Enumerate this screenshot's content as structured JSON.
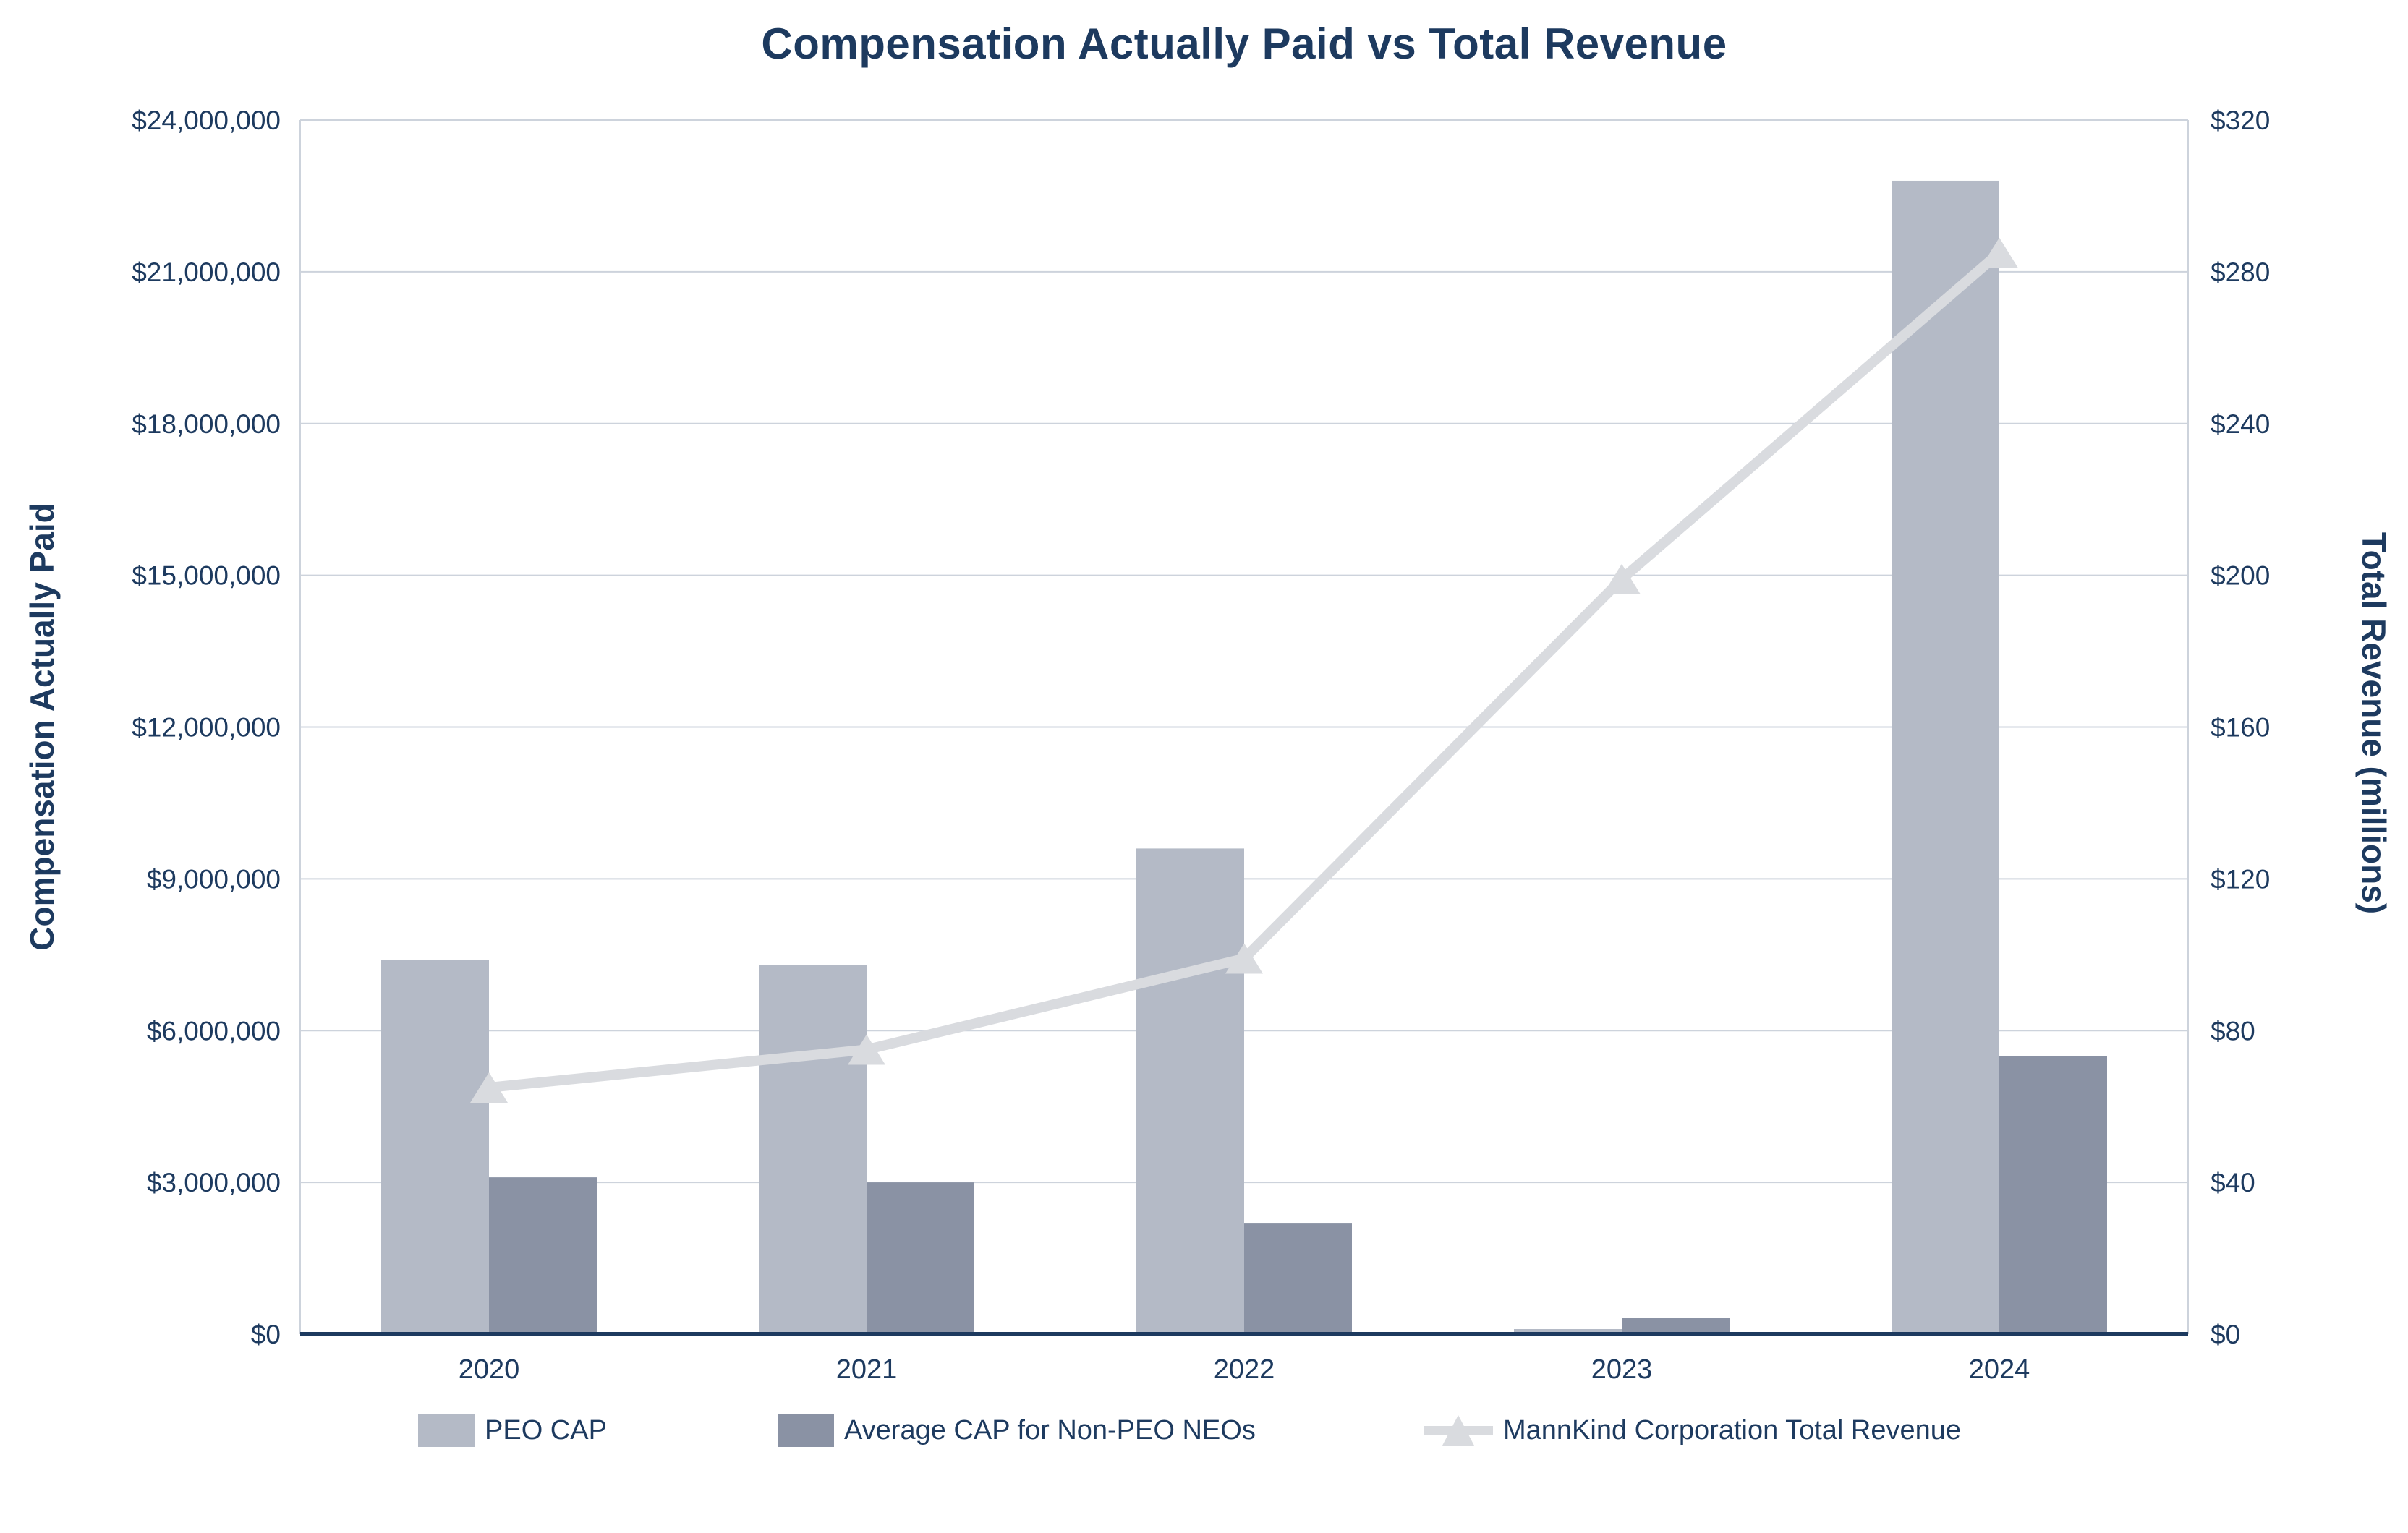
{
  "title": "Compensation Actually Paid vs Total Revenue",
  "colors": {
    "title_text": "#1d3a5f",
    "axis_text": "#1d3a5f",
    "gridline": "#cdd3dc",
    "axis_line": "#1d3a5f",
    "background": "#ffffff",
    "bar_peo": "#b4bac6",
    "bar_non_peo": "#8a92a4",
    "revenue_line": "#d9dbdf"
  },
  "chart_data": {
    "type": "combo-bar-line",
    "categories": [
      "2020",
      "2021",
      "2022",
      "2023",
      "2024"
    ],
    "series": [
      {
        "name": "PEO CAP",
        "kind": "bar",
        "axis": "left",
        "color": "#b4bac6",
        "values": [
          7400000,
          7300000,
          9600000,
          100000,
          22800000
        ]
      },
      {
        "name": "Average CAP for Non-PEO NEOs",
        "kind": "bar",
        "axis": "left",
        "color": "#8a92a4",
        "values": [
          3100000,
          3000000,
          2200000,
          320000,
          5500000
        ]
      },
      {
        "name": "MannKind Corporation Total Revenue",
        "kind": "line",
        "axis": "right",
        "color": "#d9dbdf",
        "marker": "triangle",
        "values": [
          65,
          75,
          99,
          199,
          285
        ]
      }
    ],
    "left_axis": {
      "title": "Compensation Actually Paid",
      "min": 0,
      "max": 24000000,
      "step": 3000000,
      "format": "usd_grouped",
      "tick_labels": [
        "$0",
        "$3,000,000",
        "$6,000,000",
        "$9,000,000",
        "$12,000,000",
        "$15,000,000",
        "$18,000,000",
        "$21,000,000",
        "$24,000,000"
      ]
    },
    "right_axis": {
      "title": "Total Revenue (millions)",
      "min": 0,
      "max": 320,
      "step": 40,
      "format": "usd_plain",
      "tick_labels": [
        "$0",
        "$40",
        "$80",
        "$120",
        "$160",
        "$200",
        "$240",
        "$280",
        "$320"
      ]
    },
    "grid": true,
    "legend_position": "bottom"
  }
}
